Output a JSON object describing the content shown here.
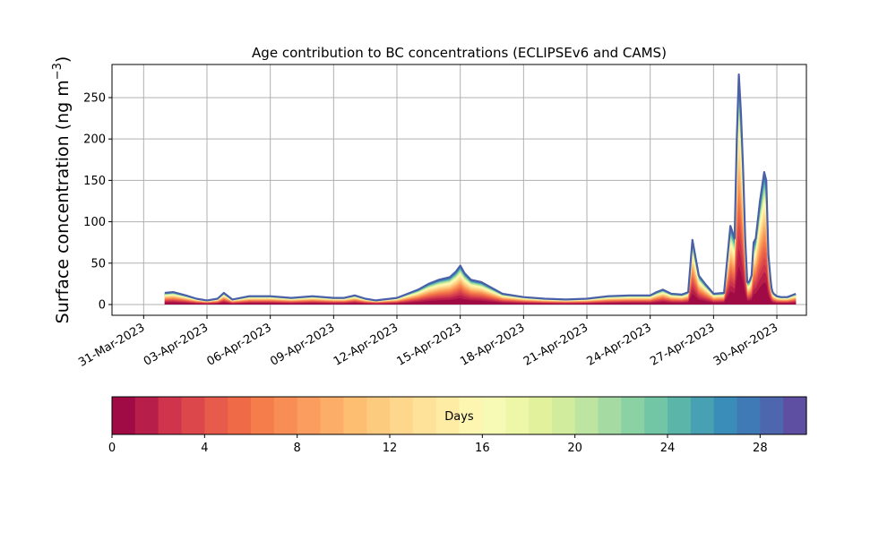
{
  "chart_data": {
    "type": "area",
    "stacked": true,
    "title": "Age contribution to BC concentrations (ECLIPSEv6 and CAMS)",
    "ylabel_main": "Surface concentration (ng m",
    "ylabel_sup": "−3",
    "ylabel_close": ")",
    "xlabel": "",
    "ylim": [
      -13,
      290
    ],
    "yticks": [
      0,
      50,
      100,
      150,
      200,
      250
    ],
    "xlim_days": [
      -1.5,
      31.4
    ],
    "xticks": [
      {
        "day": 0,
        "label": "31-Mar-2023"
      },
      {
        "day": 3,
        "label": "03-Apr-2023"
      },
      {
        "day": 6,
        "label": "06-Apr-2023"
      },
      {
        "day": 9,
        "label": "09-Apr-2023"
      },
      {
        "day": 12,
        "label": "12-Apr-2023"
      },
      {
        "day": 15,
        "label": "15-Apr-2023"
      },
      {
        "day": 18,
        "label": "18-Apr-2023"
      },
      {
        "day": 21,
        "label": "21-Apr-2023"
      },
      {
        "day": 24,
        "label": "24-Apr-2023"
      },
      {
        "day": 27,
        "label": "27-Apr-2023"
      },
      {
        "day": 30,
        "label": "30-Apr-2023"
      }
    ],
    "grid": true,
    "total_line_color": "#4a60a8",
    "total_concentration": {
      "day_offset": [
        1.0,
        1.4,
        2.0,
        2.5,
        3.0,
        3.5,
        3.8,
        4.2,
        5.0,
        6.0,
        7.0,
        8.0,
        9.0,
        9.5,
        10.0,
        10.5,
        11.0,
        12.0,
        12.5,
        13.0,
        13.5,
        14.0,
        14.5,
        14.8,
        15.0,
        15.2,
        15.5,
        16.0,
        16.5,
        17.0,
        18.0,
        19.0,
        20.0,
        21.0,
        22.0,
        23.0,
        24.0,
        24.3,
        24.6,
        25.0,
        25.5,
        25.8,
        26.0,
        26.3,
        26.6,
        27.0,
        27.5,
        27.8,
        28.0,
        28.1,
        28.2,
        28.3,
        28.4,
        28.5,
        28.6,
        28.7,
        28.8,
        28.9,
        29.0,
        29.2,
        29.4,
        29.5,
        29.6,
        29.7,
        29.75,
        29.8,
        29.85,
        29.9,
        30.0,
        30.2,
        30.5,
        30.9
      ],
      "value": [
        14,
        15,
        11,
        7,
        5,
        7,
        14,
        6,
        10,
        10,
        8,
        10,
        8,
        8,
        11,
        7,
        5,
        8,
        13,
        18,
        25,
        30,
        33,
        40,
        47,
        38,
        30,
        27,
        20,
        13,
        9,
        7,
        6,
        7,
        10,
        11,
        11,
        15,
        18,
        13,
        12,
        15,
        78,
        35,
        25,
        13,
        14,
        95,
        80,
        200,
        278,
        230,
        165,
        80,
        27,
        28,
        35,
        75,
        80,
        125,
        160,
        150,
        60,
        30,
        20,
        15,
        13,
        12,
        10,
        9,
        9,
        13
      ]
    },
    "age_bands": {
      "days": [
        0,
        1,
        2,
        3,
        4,
        5,
        6,
        7,
        8,
        9,
        10,
        11,
        12,
        13,
        14,
        15,
        16,
        17,
        18,
        19,
        20,
        21,
        22,
        23,
        24,
        25,
        26,
        27,
        28,
        29
      ],
      "colors": [
        "#a00a45",
        "#b81e4a",
        "#cf344c",
        "#db474b",
        "#e65b4b",
        "#ef6b48",
        "#f57d4b",
        "#f88e55",
        "#fa9d5e",
        "#fcad68",
        "#fdbe72",
        "#fdcb7e",
        "#fed78c",
        "#fee29a",
        "#feeca4",
        "#fdf6b0",
        "#f7fab4",
        "#eef7a7",
        "#e2f29c",
        "#d1ec9c",
        "#bde4a0",
        "#a5dba3",
        "#8ad1a4",
        "#72c6a5",
        "#5cb5a9",
        "#48a1b2",
        "#3a8db9",
        "#407ab6",
        "#4e66ad",
        "#5e4fa2"
      ]
    },
    "colorbar": {
      "label": "Days",
      "range": [
        0,
        30
      ],
      "ticks": [
        0,
        4,
        8,
        12,
        16,
        20,
        24,
        28
      ]
    }
  }
}
